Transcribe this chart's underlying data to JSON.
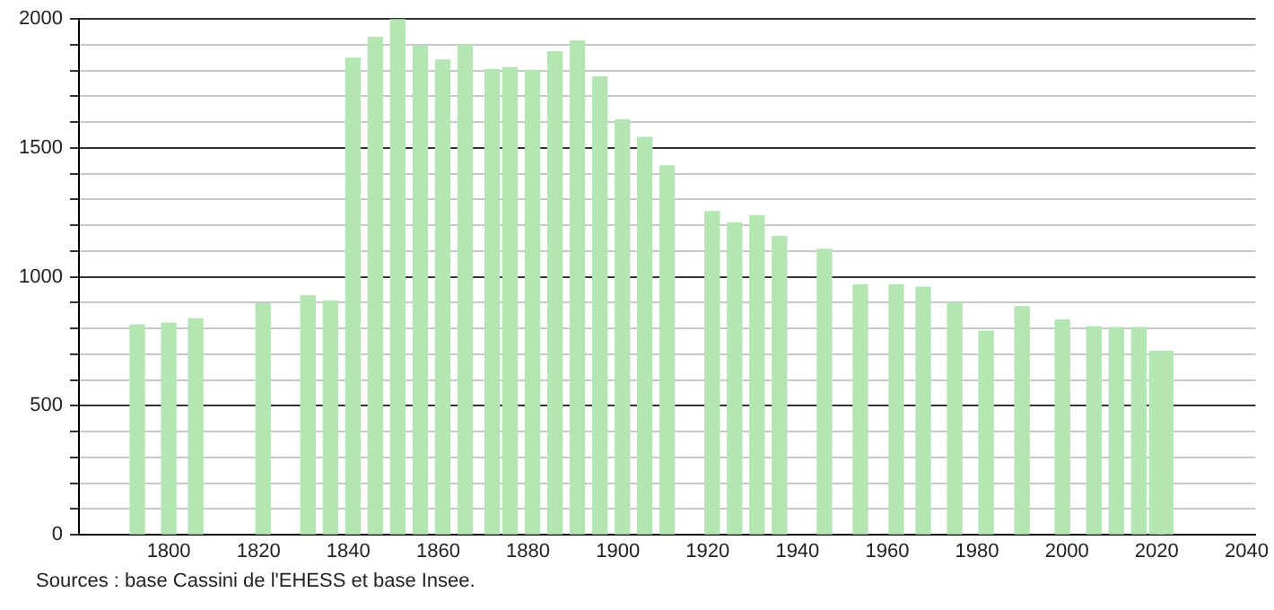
{
  "chart_data": {
    "type": "bar",
    "color": "#b3e6b3",
    "x": [
      1793,
      1800,
      1806,
      1821,
      1831,
      1836,
      1841,
      1846,
      1851,
      1856,
      1861,
      1866,
      1872,
      1876,
      1881,
      1886,
      1891,
      1896,
      1901,
      1906,
      1911,
      1921,
      1926,
      1931,
      1936,
      1946,
      1954,
      1962,
      1968,
      1975,
      1982,
      1990,
      1999,
      2006,
      2011,
      2016,
      2020,
      2022
    ],
    "values": [
      814,
      821,
      837,
      895,
      927,
      906,
      1848,
      1929,
      2000,
      1897,
      1841,
      1900,
      1804,
      1811,
      1801,
      1873,
      1915,
      1776,
      1610,
      1541,
      1430,
      1253,
      1209,
      1237,
      1156,
      1107,
      969,
      969,
      960,
      898,
      789,
      884,
      833,
      807,
      803,
      803,
      711,
      711
    ],
    "xlim": [
      1780,
      2042
    ],
    "xticks": [
      1800,
      1820,
      1840,
      1860,
      1880,
      1900,
      1920,
      1940,
      1960,
      1980,
      2000,
      2020,
      2040
    ],
    "ylim": [
      0,
      2000
    ],
    "yticks": [
      0,
      {
        "value": 100,
        "label": null
      },
      {
        "value": 200,
        "label": null
      },
      {
        "value": 300,
        "label": null
      },
      {
        "value": 400,
        "label": null
      },
      500,
      {
        "value": 600,
        "label": null
      },
      {
        "value": 700,
        "label": null
      },
      {
        "value": 800,
        "label": null
      },
      {
        "value": 900,
        "label": null
      },
      1000,
      {
        "value": 1100,
        "label": null
      },
      {
        "value": 1200,
        "label": null
      },
      {
        "value": 1300,
        "label": null
      },
      {
        "value": 1400,
        "label": null
      },
      1500,
      {
        "value": 1600,
        "label": null
      },
      {
        "value": 1700,
        "label": null
      },
      {
        "value": 1800,
        "label": null
      },
      {
        "value": 1900,
        "label": null
      },
      2000
    ],
    "grid": "y",
    "annotations": [
      "Sources : base Cassini de l'EHESS et base Insee."
    ]
  }
}
